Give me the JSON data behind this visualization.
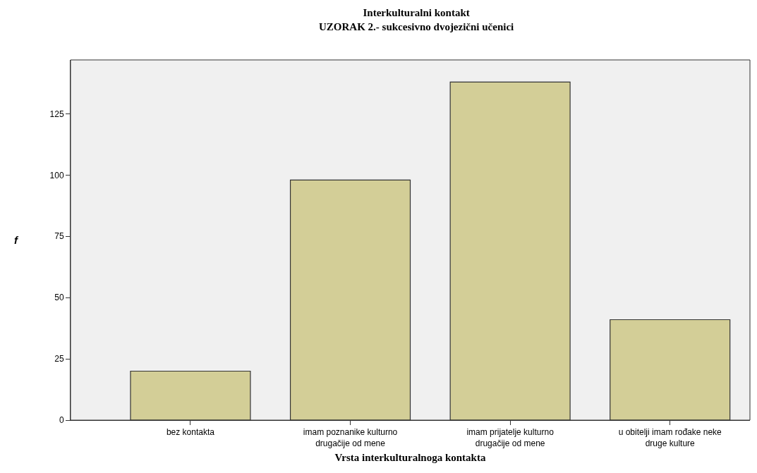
{
  "chart_data": {
    "type": "bar",
    "title": "Interkulturalni kontakt",
    "subtitle": "UZORAK 2.- sukcesivno dvojezični učenici",
    "categories": [
      "bez kontakta",
      "imam poznanike kulturno\ndrugačije od mene",
      "imam prijatelje kulturno\ndrugačije od mene",
      "u obitelji imam rođake neke\ndruge kulture"
    ],
    "values": [
      20,
      98,
      138,
      41
    ],
    "color": "#d3ce97",
    "xlabel": "Vrsta interkulturalnoga kontakta",
    "ylabel": "f",
    "ylim": [
      0,
      147
    ],
    "yticks": [
      0,
      25,
      50,
      75,
      100,
      125
    ],
    "grid": false
  }
}
